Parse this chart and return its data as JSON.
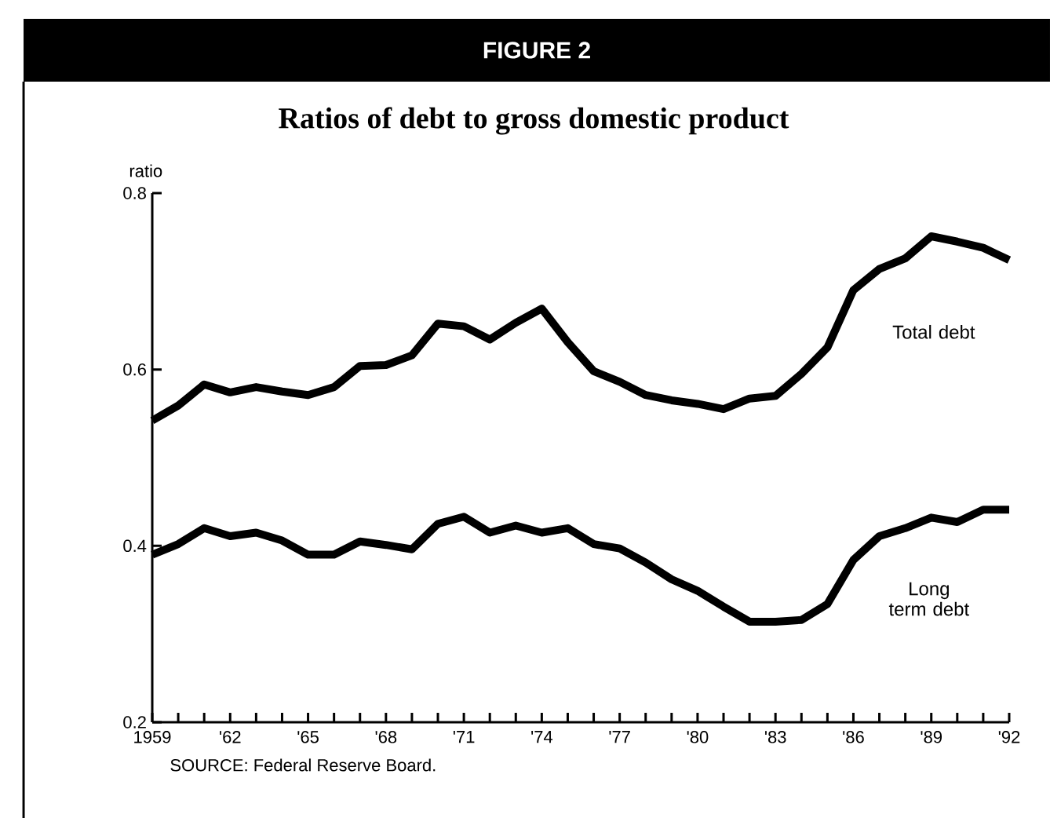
{
  "chart_data": {
    "type": "line",
    "title": "FIGURE 2",
    "subtitle": "Ratios of debt to gross domestic product",
    "ylabel": "ratio",
    "annotations": [
      "SOURCE: Federal Reserve Board."
    ],
    "x": [
      1959,
      1960,
      1961,
      1962,
      1963,
      1964,
      1965,
      1966,
      1967,
      1968,
      1969,
      1970,
      1971,
      1972,
      1973,
      1974,
      1975,
      1976,
      1977,
      1978,
      1979,
      1980,
      1981,
      1982,
      1983,
      1984,
      1985,
      1986,
      1987,
      1988,
      1989,
      1990,
      1991,
      1992
    ],
    "series": [
      {
        "name": "Total debt",
        "color": "#000000",
        "values": [
          0.542,
          0.559,
          0.583,
          0.574,
          0.58,
          0.575,
          0.571,
          0.58,
          0.604,
          0.605,
          0.616,
          0.652,
          0.649,
          0.634,
          0.653,
          0.669,
          0.631,
          0.598,
          0.586,
          0.571,
          0.565,
          0.561,
          0.555,
          0.567,
          0.57,
          0.595,
          0.625,
          0.69,
          0.714,
          0.726,
          0.751,
          0.745,
          0.738,
          0.724
        ]
      },
      {
        "name": "Long term debt",
        "color": "#000000",
        "values": [
          0.39,
          0.402,
          0.42,
          0.411,
          0.415,
          0.406,
          0.39,
          0.39,
          0.405,
          0.401,
          0.396,
          0.425,
          0.433,
          0.415,
          0.423,
          0.415,
          0.42,
          0.402,
          0.397,
          0.381,
          0.362,
          0.349,
          0.331,
          0.314,
          0.314,
          0.316,
          0.334,
          0.384,
          0.411,
          0.42,
          0.432,
          0.427,
          0.441,
          0.441
        ]
      }
    ],
    "xlim": [
      1959,
      1992
    ],
    "ylim": [
      0.2,
      0.8
    ],
    "xticks": [
      1959,
      {
        "value": 1960,
        "label": null
      },
      {
        "value": 1961,
        "label": null
      },
      {
        "value": 1962,
        "label": "'62"
      },
      {
        "value": 1963,
        "label": null
      },
      {
        "value": 1964,
        "label": null
      },
      {
        "value": 1965,
        "label": "'65"
      },
      {
        "value": 1966,
        "label": null
      },
      {
        "value": 1967,
        "label": null
      },
      {
        "value": 1968,
        "label": "'68"
      },
      {
        "value": 1969,
        "label": null
      },
      {
        "value": 1970,
        "label": null
      },
      {
        "value": 1971,
        "label": "'71"
      },
      {
        "value": 1972,
        "label": null
      },
      {
        "value": 1973,
        "label": null
      },
      {
        "value": 1974,
        "label": "'74"
      },
      {
        "value": 1975,
        "label": null
      },
      {
        "value": 1976,
        "label": null
      },
      {
        "value": 1977,
        "label": "'77"
      },
      {
        "value": 1978,
        "label": null
      },
      {
        "value": 1979,
        "label": null
      },
      {
        "value": 1980,
        "label": "'80"
      },
      {
        "value": 1981,
        "label": null
      },
      {
        "value": 1982,
        "label": null
      },
      {
        "value": 1983,
        "label": "'83"
      },
      {
        "value": 1984,
        "label": null
      },
      {
        "value": 1985,
        "label": null
      },
      {
        "value": 1986,
        "label": "'86"
      },
      {
        "value": 1987,
        "label": null
      },
      {
        "value": 1988,
        "label": null
      },
      {
        "value": 1989,
        "label": "'89"
      },
      {
        "value": 1990,
        "label": null
      },
      {
        "value": 1991,
        "label": null
      },
      {
        "value": 1992,
        "label": "'92"
      }
    ],
    "yticks": [
      0.2,
      0.4,
      0.6,
      0.8
    ],
    "marker": "none",
    "line_style": "solid",
    "grid": false
  }
}
